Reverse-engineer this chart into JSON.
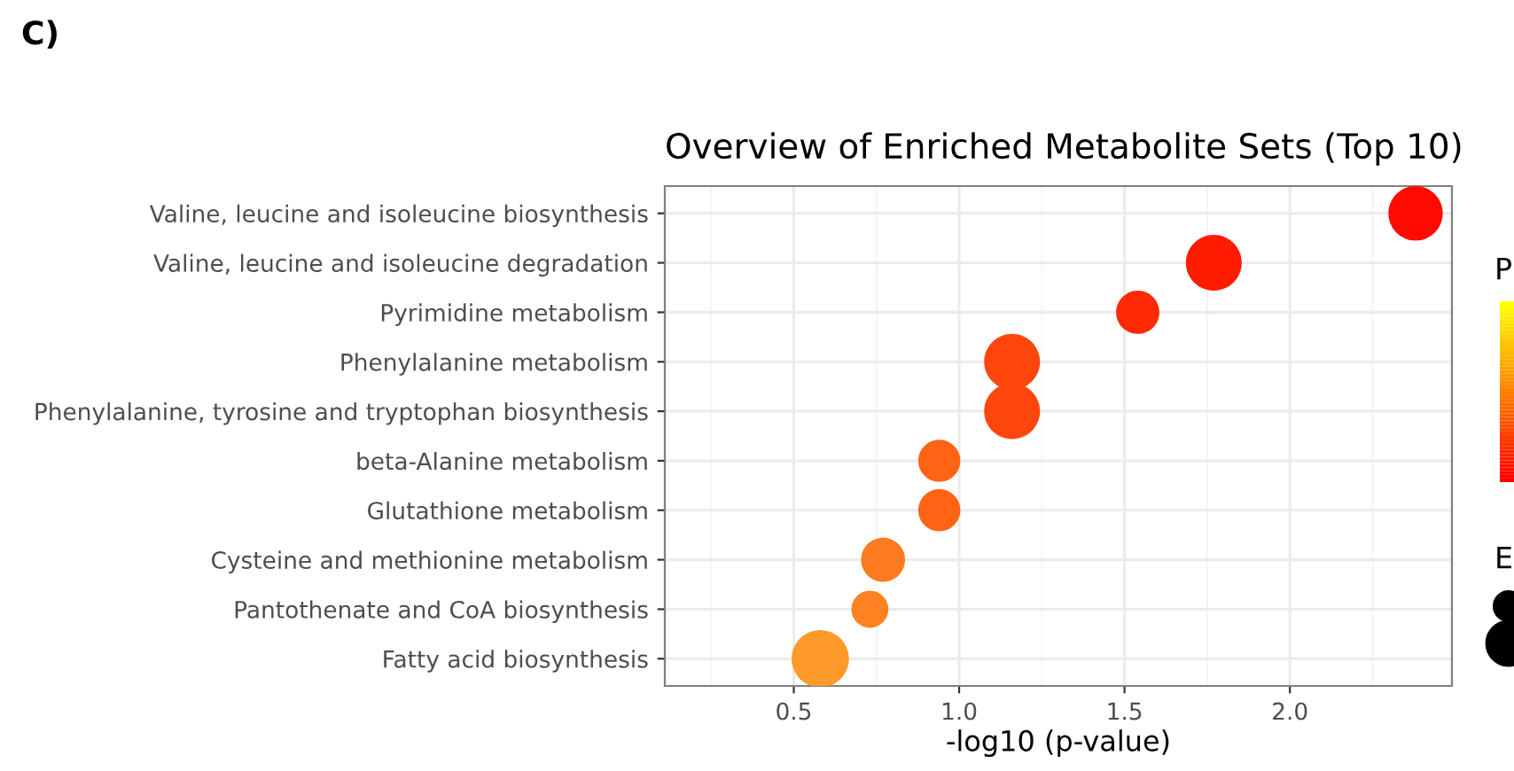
{
  "chart_data": {
    "type": "bubble",
    "title": "Overview of Enriched Metabolite Sets (Top 10)",
    "xlabel": "-log10 (p-value)",
    "clabel": "P",
    "legend_title": "E",
    "annotations": [
      "C)"
    ],
    "categories": [
      "Valine, leucine and isoleucine biosynthesis",
      "Valine, leucine and isoleucine degradation",
      "Pyrimidine metabolism",
      "Phenylalanine metabolism",
      "Phenylalanine, tyrosine and tryptophan biosynthesis",
      "beta-Alanine metabolism",
      "Glutathione metabolism",
      "Cysteine and methionine metabolism",
      "Pantothenate and CoA biosynthesis",
      "Fatty acid biosynthesis"
    ],
    "values": [
      2.38,
      1.77,
      1.54,
      1.16,
      1.16,
      0.94,
      0.94,
      0.77,
      0.73,
      0.58
    ],
    "sizes": [
      0.9,
      0.95,
      0.57,
      0.95,
      0.95,
      0.54,
      0.54,
      0.59,
      0.42,
      1
    ],
    "colors": [
      "#fe0a00",
      "#fe1c00",
      "#fe2a06",
      "#fe460c",
      "#fe460c",
      "#fe6414",
      "#fe6414",
      "#fe7a20",
      "#fe8222",
      "#fe9a2a"
    ],
    "orientation": "horizontal",
    "xlim": [
      0.11,
      2.49
    ],
    "xticks": [
      0.5,
      {
        "value": 1,
        "label": "1.0"
      },
      1.5,
      {
        "value": 2,
        "label": "2.0"
      }
    ],
    "grid": true
  }
}
